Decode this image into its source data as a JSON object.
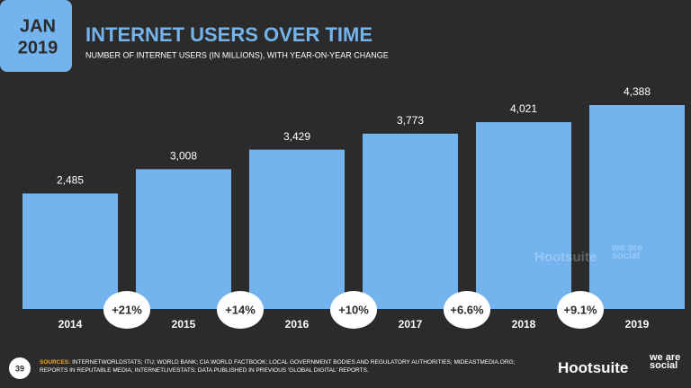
{
  "badge": {
    "month": "JAN",
    "year": "2019"
  },
  "chart_data": {
    "type": "bar",
    "title": "INTERNET USERS OVER TIME",
    "subtitle": "NUMBER OF INTERNET USERS (IN MILLIONS), WITH YEAR-ON-YEAR CHANGE",
    "categories": [
      "2014",
      "2015",
      "2016",
      "2017",
      "2018",
      "2019"
    ],
    "values": [
      2485,
      3008,
      3429,
      3773,
      4021,
      4388
    ],
    "value_labels": [
      "2,485",
      "3,008",
      "3,429",
      "3,773",
      "4,021",
      "4,388"
    ],
    "color": "#74b4ee",
    "changes": [
      "+21%",
      "+14%",
      "+10%",
      "+6.6%",
      "+9.1%"
    ]
  },
  "footer": {
    "page_number": "39",
    "sources_label": "SOURCES:",
    "sources": "INTERNETWORLDSTATS; ITU; WORLD BANK; CIA WORLD FACTBOOK; LOCAL GOVERNMENT BODIES AND REGULATORY AUTHORITIES; MIDEASTMEDIA.ORG; REPORTS IN REPUTABLE MEDIA; INTERNETLIVESTATS; DATA PUBLISHED IN PREVIOUS 'GLOBAL DIGITAL' REPORTS.",
    "brand": "Hootsuite",
    "partner": "we are social"
  }
}
